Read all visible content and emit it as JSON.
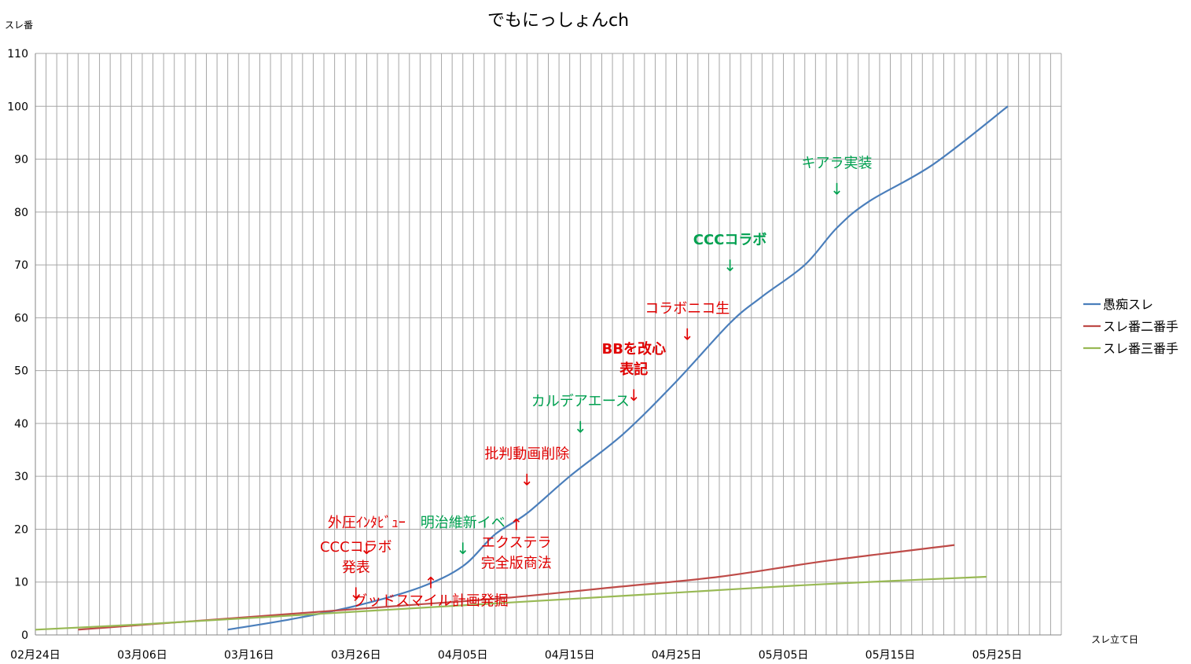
{
  "chart_data": {
    "type": "line",
    "title": "でもにっしょんch",
    "ylabel": "スレ番",
    "xlabel": "スレ立て日",
    "x_range": [
      "2015-02-24",
      "2015-05-31"
    ],
    "ylim": [
      0,
      110
    ],
    "grid": true,
    "legend_position": "right",
    "yticks": [
      "0",
      "10",
      "20",
      "30",
      "40",
      "50",
      "60",
      "70",
      "80",
      "90",
      "100",
      "110"
    ],
    "xticks": [
      {
        "date": "2015-02-24",
        "label": "02月24日"
      },
      {
        "date": "2015-03-06",
        "label": "03月06日"
      },
      {
        "date": "2015-03-16",
        "label": "03月16日"
      },
      {
        "date": "2015-03-26",
        "label": "03月26日"
      },
      {
        "date": "2015-04-05",
        "label": "04月05日"
      },
      {
        "date": "2015-04-15",
        "label": "04月15日"
      },
      {
        "date": "2015-04-25",
        "label": "04月25日"
      },
      {
        "date": "2015-05-05",
        "label": "05月05日"
      },
      {
        "date": "2015-05-15",
        "label": "05月15日"
      },
      {
        "date": "2015-05-25",
        "label": "05月25日"
      }
    ],
    "series": [
      {
        "name": "愚痴スレ",
        "color": "#4a7ebb",
        "points": [
          [
            "2015-03-14",
            1
          ],
          [
            "2015-03-20",
            3
          ],
          [
            "2015-03-26",
            5.5
          ],
          [
            "2015-04-01",
            9
          ],
          [
            "2015-04-05",
            13
          ],
          [
            "2015-04-08",
            19
          ],
          [
            "2015-04-11",
            23
          ],
          [
            "2015-04-15",
            30
          ],
          [
            "2015-04-20",
            38
          ],
          [
            "2015-04-25",
            48
          ],
          [
            "2015-04-30",
            59
          ],
          [
            "2015-05-03",
            64
          ],
          [
            "2015-05-07",
            70
          ],
          [
            "2015-05-10",
            77
          ],
          [
            "2015-05-13",
            82
          ],
          [
            "2015-05-19",
            89
          ],
          [
            "2015-05-26",
            100
          ]
        ]
      },
      {
        "name": "スレ番二番手",
        "color": "#be4b48",
        "points": [
          [
            "2015-02-28",
            1
          ],
          [
            "2015-03-10",
            2.5
          ],
          [
            "2015-03-20",
            4
          ],
          [
            "2015-03-30",
            5.5
          ],
          [
            "2015-04-09",
            7
          ],
          [
            "2015-04-19",
            9
          ],
          [
            "2015-04-29",
            11
          ],
          [
            "2015-05-09",
            14
          ],
          [
            "2015-05-21",
            17
          ]
        ]
      },
      {
        "name": "スレ番三番手",
        "color": "#98b954",
        "points": [
          [
            "2015-02-24",
            1
          ],
          [
            "2015-03-06",
            2
          ],
          [
            "2015-03-16",
            3.2
          ],
          [
            "2015-03-26",
            4.4
          ],
          [
            "2015-04-05",
            5.6
          ],
          [
            "2015-04-15",
            6.8
          ],
          [
            "2015-04-25",
            8
          ],
          [
            "2015-05-05",
            9.2
          ],
          [
            "2015-05-15",
            10.2
          ],
          [
            "2015-05-24",
            11
          ]
        ]
      }
    ],
    "annotations": [
      {
        "text": [
          "CCCコラボ",
          "発表"
        ],
        "date": "2015-03-26",
        "y": 8,
        "color": "#e00000",
        "arrow": "down",
        "bold": false
      },
      {
        "text": [
          "外圧ｲﾝﾀﾋﾞｭｰ"
        ],
        "date": "2015-03-27",
        "y": 16.5,
        "color": "#e00000",
        "arrow": "down",
        "bold": false
      },
      {
        "text": [
          "明治維新イベ"
        ],
        "date": "2015-04-05",
        "y": 16.5,
        "color": "#00a050",
        "arrow": "down",
        "bold": false
      },
      {
        "text": [
          "グッドスマイル計画発掘"
        ],
        "date": "2015-04-02",
        "y": 10,
        "color": "#e00000",
        "arrow": "up",
        "bold": false
      },
      {
        "text": [
          "エクステラ",
          "完全版商法"
        ],
        "date": "2015-04-10",
        "y": 21,
        "color": "#e00000",
        "arrow": "up",
        "bold": false
      },
      {
        "text": [
          "批判動画削除"
        ],
        "date": "2015-04-11",
        "y": 29.5,
        "color": "#e00000",
        "arrow": "down",
        "bold": false
      },
      {
        "text": [
          "カルデアエース"
        ],
        "date": "2015-04-16",
        "y": 39.5,
        "color": "#00a050",
        "arrow": "down",
        "bold": false
      },
      {
        "text": [
          "BBを改心",
          "表記"
        ],
        "date": "2015-04-21",
        "y": 45.5,
        "color": "#e00000",
        "arrow": "down",
        "bold": true
      },
      {
        "text": [
          "コラボニコ生"
        ],
        "date": "2015-04-26",
        "y": 57,
        "color": "#e00000",
        "arrow": "down",
        "bold": false
      },
      {
        "text": [
          "CCCコラボ"
        ],
        "date": "2015-04-30",
        "y": 70,
        "color": "#00a050",
        "arrow": "down",
        "bold": true
      },
      {
        "text": [
          "キアラ実装"
        ],
        "date": "2015-05-10",
        "y": 84.5,
        "color": "#00a050",
        "arrow": "down",
        "bold": false
      }
    ]
  }
}
